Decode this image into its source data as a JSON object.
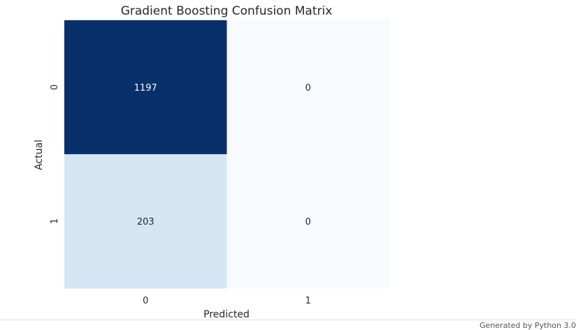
{
  "chart_data": {
    "type": "heatmap",
    "title": "Gradient Boosting Confusion Matrix",
    "xlabel": "Predicted",
    "ylabel": "Actual",
    "x_categories": [
      "0",
      "1"
    ],
    "y_categories": [
      "0",
      "1"
    ],
    "values": [
      [
        1197,
        0
      ],
      [
        203,
        0
      ]
    ],
    "colormap": "Blues",
    "colorbar": false,
    "annotations": true,
    "colors": {
      "max": "#08306b",
      "min": "#f7fbff",
      "dark_text": "#262626",
      "light_text": "#ffffff"
    }
  },
  "footer": {
    "text": "Generated by Python 3.0"
  }
}
